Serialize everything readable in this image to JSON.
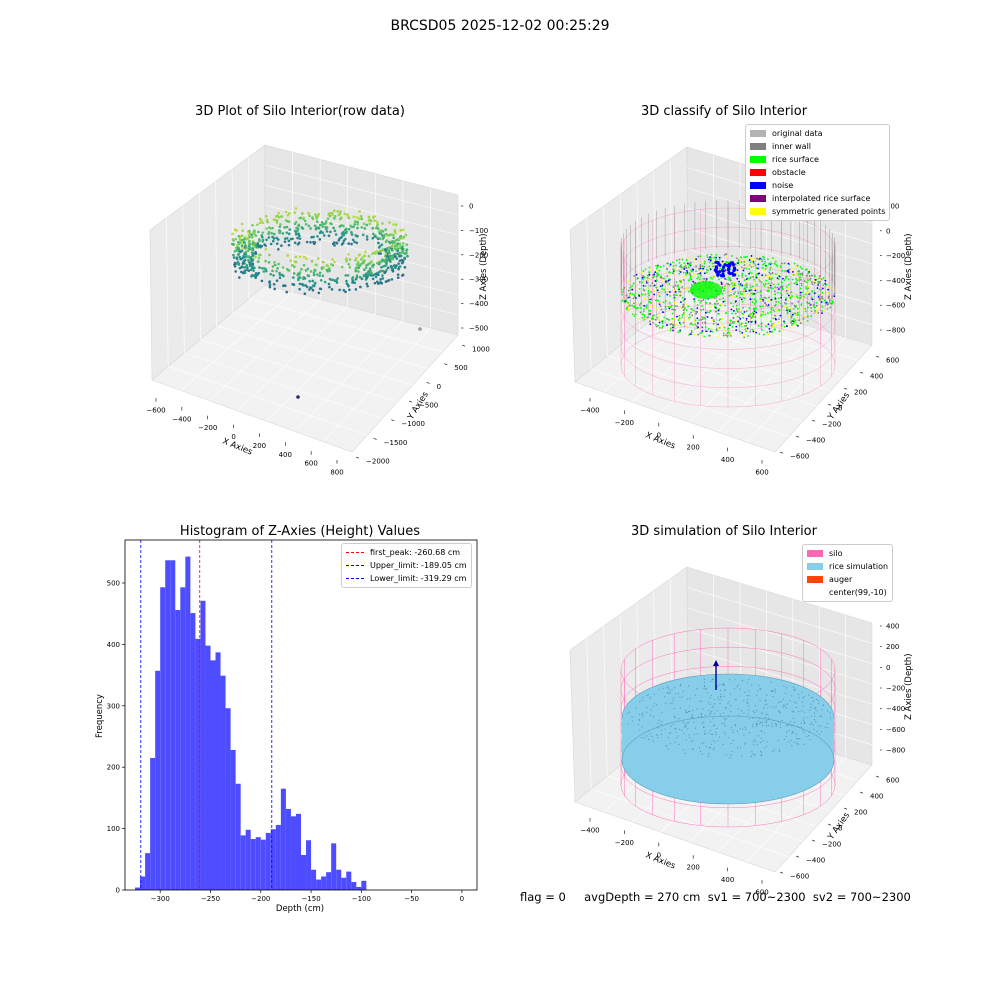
{
  "suptitle": "BRCSD05 2025-12-02 00:25:29",
  "panel1": {
    "title": "3D Plot of Silo Interior(row data)",
    "xlabel": "X Axies",
    "ylabel": "Y Axies",
    "zlabel": "Z Axies (Depth)",
    "xticks": [
      "−600",
      "−400",
      "−200",
      "0",
      "200",
      "400",
      "600",
      "800"
    ],
    "yticks": [
      "−2000",
      "−1500",
      "−1000",
      "−500",
      "0",
      "500",
      "1000"
    ],
    "zticks": [
      "−500",
      "−400",
      "−300",
      "−200",
      "−100",
      "0"
    ]
  },
  "panel2": {
    "title": "3D classify of Silo Interior",
    "xlabel": "X Axies",
    "ylabel": "Y Axies",
    "zlabel": "Z Axies (Depth)",
    "xticks": [
      "−400",
      "−200",
      "0",
      "200",
      "400",
      "600"
    ],
    "yticks": [
      "−600",
      "−400",
      "−200",
      "0",
      "200",
      "400",
      "600"
    ],
    "zticks": [
      "−800",
      "−600",
      "−400",
      "−200",
      "0",
      "200"
    ],
    "legend": [
      {
        "label": "original data",
        "color": "#b3b3b3"
      },
      {
        "label": "inner wall",
        "color": "#808080"
      },
      {
        "label": "rice surface",
        "color": "#00ff00"
      },
      {
        "label": "obstacle",
        "color": "#ff0000"
      },
      {
        "label": "noise",
        "color": "#0000ff"
      },
      {
        "label": "interpolated rice surface",
        "color": "#800080"
      },
      {
        "label": "symmetric generated points",
        "color": "#ffff00"
      }
    ]
  },
  "panel3": {
    "title": "Histogram of Z-Axies (Height) Values",
    "xlabel": "Depth (cm)",
    "ylabel": "Frequency",
    "legend": [
      {
        "label": "first_peak: -260.68 cm",
        "color": "#ff0000"
      },
      {
        "label": "Upper_limit: -189.05 cm",
        "color": "#0000ff"
      },
      {
        "label": "Lower_limit: -319.29 cm",
        "color": "#0000ff"
      }
    ]
  },
  "panel4": {
    "title": "3D simulation of Silo Interior",
    "xlabel": "X Axies",
    "ylabel": "Y Axies",
    "zlabel": "Z Axies (Depth)",
    "xticks": [
      "−400",
      "−200",
      "0",
      "200",
      "400",
      "600"
    ],
    "yticks": [
      "−600",
      "−400",
      "−200",
      "0",
      "200",
      "400",
      "600"
    ],
    "zticks": [
      "−800",
      "−600",
      "−400",
      "−200",
      "0",
      "200",
      "400"
    ],
    "legend": [
      {
        "label": "silo",
        "color": "#ff69b4"
      },
      {
        "label": "rice simulation",
        "color": "#87ceeb"
      },
      {
        "label": "auger",
        "color": "#ff4500"
      },
      {
        "label": "center(99,-10)",
        "color": "#ffffff"
      }
    ]
  },
  "footer": "flag = 0     avgDepth = 270 cm  sv1 = 700~2300  sv2 = 700~2300",
  "chart_data": [
    {
      "type": "histogram",
      "title": "Histogram of Z-Axies (Height) Values",
      "xlabel": "Depth (cm)",
      "ylabel": "Frequency",
      "xlim": [
        -335,
        15
      ],
      "ylim": [
        0,
        570
      ],
      "bin_start": -325,
      "bin_width": 5,
      "values": [
        4,
        22,
        60,
        215,
        357,
        493,
        537,
        537,
        456,
        493,
        543,
        451,
        409,
        471,
        398,
        374,
        387,
        349,
        296,
        228,
        173,
        89,
        98,
        83,
        86,
        82,
        93,
        99,
        106,
        165,
        132,
        120,
        124,
        57,
        81,
        33,
        17,
        22,
        29,
        76,
        33,
        20,
        30,
        13,
        5,
        15
      ],
      "xticks": [
        -300,
        -250,
        -200,
        -150,
        -100,
        -50,
        0
      ],
      "yticks": [
        0,
        100,
        200,
        300,
        400,
        500
      ],
      "vlines": [
        {
          "name": "first_peak",
          "x": -260.68,
          "color": "#ff0000"
        },
        {
          "name": "Upper_limit",
          "x": -189.05,
          "color": "#0000ff"
        },
        {
          "name": "Lower_limit",
          "x": -319.29,
          "color": "#0000ff"
        }
      ],
      "bar_color": "#4d4dff"
    },
    {
      "type": "scatter3d",
      "title": "3D Plot of Silo Interior(row data)",
      "xlim": [
        -650,
        800
      ],
      "ylim": [
        -2000,
        1000
      ],
      "zlim": [
        -550,
        0
      ],
      "colormap": "viridis"
    },
    {
      "type": "scatter3d",
      "title": "3D classify of Silo Interior",
      "xlim": [
        -500,
        700
      ],
      "ylim": [
        -650,
        650
      ],
      "zlim": [
        -900,
        250
      ]
    },
    {
      "type": "surface3d",
      "title": "3D simulation of Silo Interior",
      "xlim": [
        -500,
        700
      ],
      "ylim": [
        -650,
        650
      ],
      "zlim": [
        -900,
        450
      ]
    }
  ]
}
